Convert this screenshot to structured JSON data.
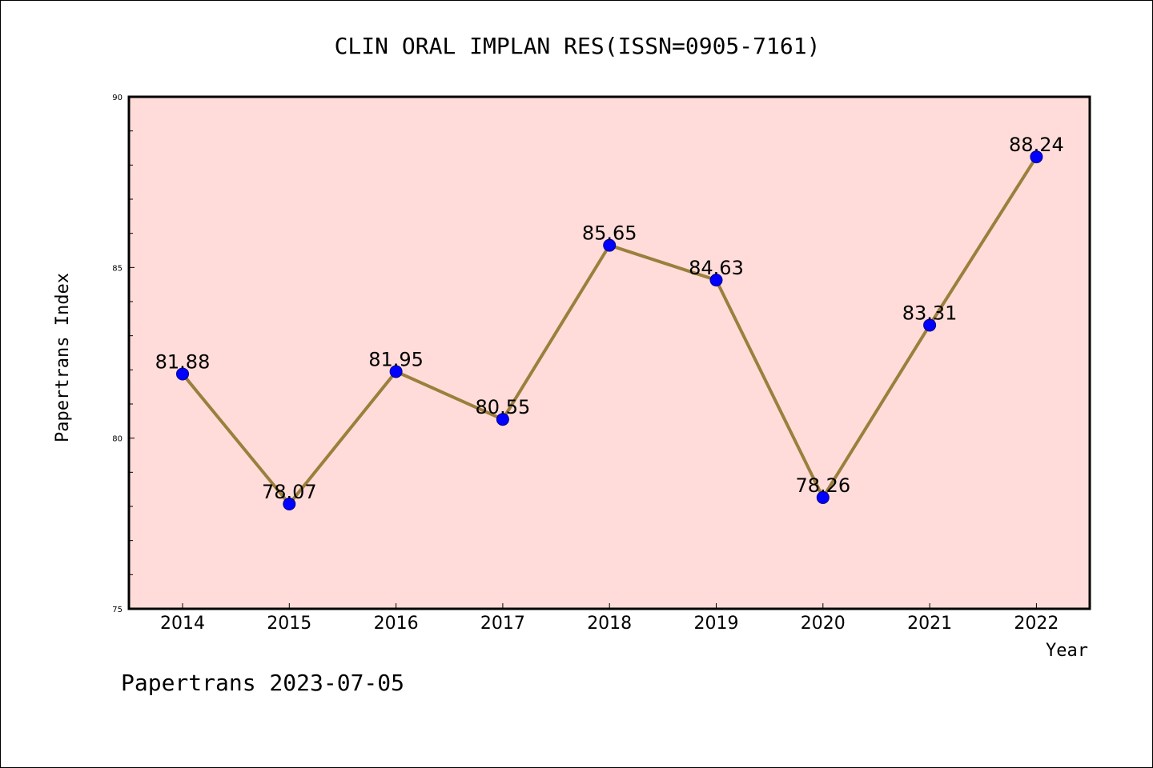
{
  "chart_data": {
    "type": "line",
    "title": "CLIN ORAL IMPLAN RES(ISSN=0905-7161)",
    "xlabel": "Year",
    "ylabel": "Papertrans Index",
    "x": [
      "2014",
      "2015",
      "2016",
      "2017",
      "2018",
      "2019",
      "2020",
      "2021",
      "2022"
    ],
    "values": [
      81.88,
      78.07,
      81.95,
      80.55,
      85.65,
      84.63,
      78.26,
      83.31,
      88.24
    ],
    "data_labels": [
      "81.88",
      "78.07",
      "81.95",
      "80.55",
      "85.65",
      "84.63",
      "78.26",
      "83.31",
      "88.24"
    ],
    "ylim": [
      75,
      90
    ],
    "y_ticks": [
      "75",
      "80",
      "85",
      "90"
    ],
    "grid": false,
    "colors": {
      "plot_background": "#ffdcd9",
      "line": "#9b7f3c",
      "marker": "#0000ff"
    }
  },
  "footer": "Papertrans 2023-07-05"
}
